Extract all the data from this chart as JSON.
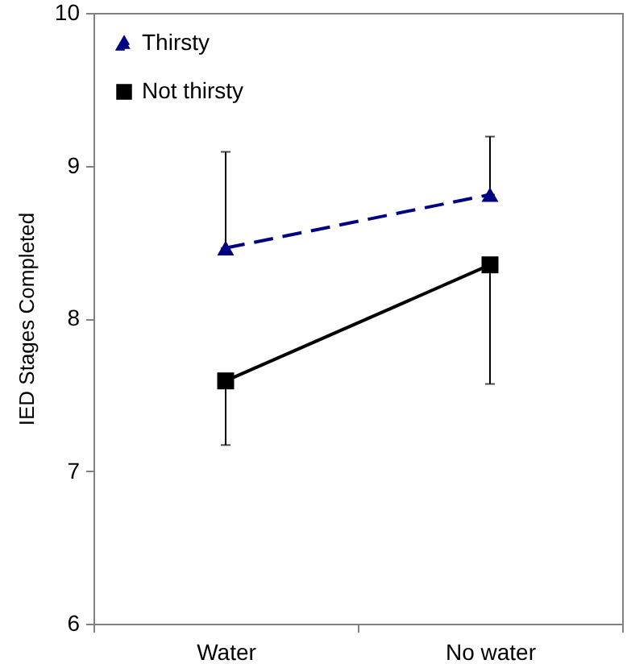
{
  "chart_data": {
    "type": "line",
    "ylabel": "IED Stages Completed",
    "categories": [
      "Water",
      "No water"
    ],
    "series": [
      {
        "name": "Thirsty",
        "color": "#000080",
        "line_style": "dashed",
        "marker": "triangle",
        "values": [
          8.46,
          8.81
        ],
        "errors": [
          [
            8.46,
            9.09
          ],
          [
            8.81,
            9.19
          ]
        ]
      },
      {
        "name": "Not thirsty",
        "color": "#000000",
        "line_style": "solid",
        "marker": "square",
        "values": [
          7.59,
          8.35
        ],
        "errors": [
          [
            7.17,
            7.59
          ],
          [
            7.57,
            8.35
          ]
        ]
      }
    ],
    "ylim": [
      6,
      10
    ],
    "yticks": [
      6,
      7,
      8,
      9,
      10
    ],
    "grid": false,
    "legend": "top left"
  }
}
